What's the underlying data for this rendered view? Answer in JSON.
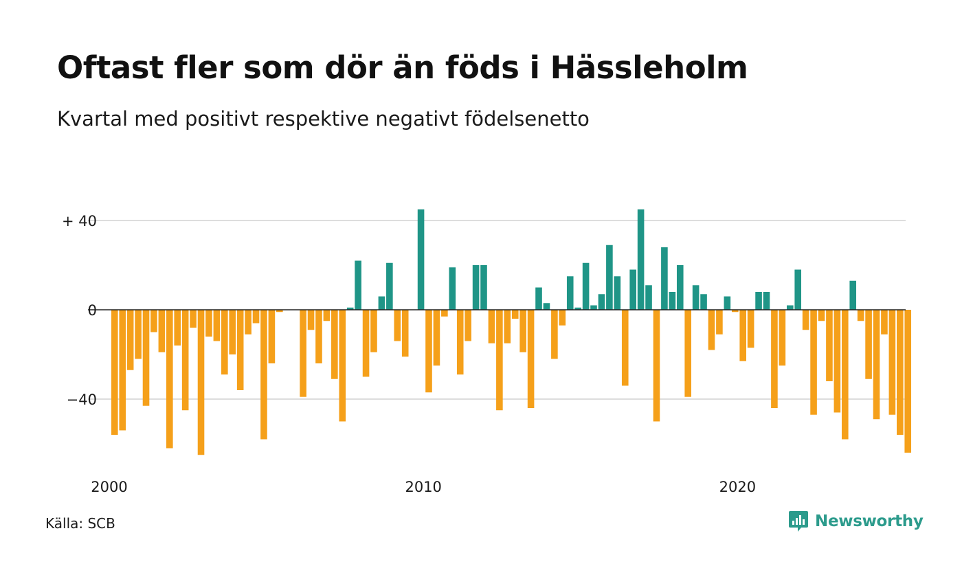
{
  "title": "Oftast fler som dör än föds i Hässleholm",
  "subtitle": "Kvartal med positivt respektive negativt födelsenetto",
  "source": "Källa: SCB",
  "brand": "Newsworthy",
  "colors": {
    "positive": "#1f9587",
    "negative": "#f5a01a",
    "grid": "#dddddd",
    "zero_line": "#222222",
    "brand": "#2c9b8c"
  },
  "chart_data": {
    "type": "bar",
    "x_ticks": [
      "2000",
      "2010",
      "2020"
    ],
    "y_ticks": [
      "+ 40",
      "0",
      "−40"
    ],
    "y_tick_values": [
      40,
      0,
      -40
    ],
    "ylim": [
      -67,
      46
    ],
    "x_start": "2000 Q1",
    "periods_per_year": 4,
    "grid": true,
    "values": [
      -56,
      -54,
      -27,
      -22,
      -43,
      -10,
      -19,
      -62,
      -16,
      -45,
      -8,
      -65,
      -12,
      -14,
      -29,
      -20,
      -36,
      -11,
      -6,
      -58,
      -24,
      -1,
      0,
      0,
      -39,
      -9,
      -24,
      -5,
      -31,
      -50,
      1,
      22,
      -30,
      -19,
      6,
      21,
      -14,
      -21,
      0,
      45,
      -37,
      -25,
      -3,
      19,
      -29,
      -14,
      20,
      20,
      -15,
      -45,
      -15,
      -4,
      -19,
      -44,
      10,
      3,
      -22,
      -7,
      15,
      1,
      21,
      2,
      7,
      29,
      15,
      -34,
      18,
      45,
      11,
      -50,
      28,
      8,
      20,
      -39,
      11,
      7,
      -18,
      -11,
      6,
      -1,
      -23,
      -17,
      8,
      8,
      -44,
      -25,
      2,
      18,
      -9,
      -47,
      -5,
      -32,
      -46,
      -58,
      13,
      -5,
      -31,
      -49,
      -11,
      -47,
      -56,
      -64
    ]
  }
}
